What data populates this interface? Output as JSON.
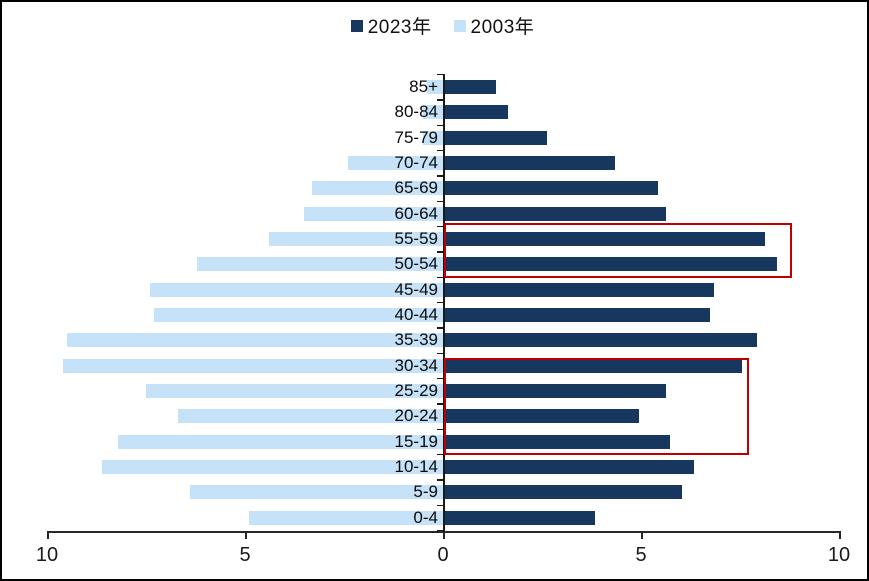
{
  "chart_data": {
    "type": "bar",
    "subtype": "population-pyramid-horizontal",
    "title": "",
    "categories": [
      "85+",
      "80-84",
      "75-79",
      "70-74",
      "65-69",
      "60-64",
      "55-59",
      "50-54",
      "45-49",
      "40-44",
      "35-39",
      "30-34",
      "25-29",
      "20-24",
      "15-19",
      "10-14",
      "5-9",
      "0-4"
    ],
    "series": [
      {
        "name": "2023年",
        "side": "right",
        "color": "#17375E",
        "values": [
          1.3,
          1.6,
          2.6,
          4.3,
          5.4,
          5.6,
          8.1,
          8.4,
          6.8,
          6.7,
          7.9,
          7.5,
          5.6,
          4.9,
          5.7,
          6.3,
          6.0,
          3.8
        ]
      },
      {
        "name": "2003年",
        "side": "left",
        "color": "#C6E2F8",
        "values": [
          0.4,
          0.5,
          0.5,
          2.4,
          3.3,
          3.5,
          4.4,
          6.2,
          7.4,
          7.3,
          9.5,
          9.6,
          7.5,
          6.7,
          8.2,
          8.6,
          6.4,
          4.9
        ]
      }
    ],
    "x_axis": {
      "ticks": [
        {
          "label": "10",
          "value": -10
        },
        {
          "label": "5",
          "value": -5
        },
        {
          "label": "0",
          "value": 0
        },
        {
          "label": "5",
          "value": 5
        },
        {
          "label": "10",
          "value": 10
        }
      ],
      "range_abs": 10,
      "grid": false
    },
    "legend_position": "top-center",
    "annotations": [
      {
        "type": "rect",
        "color": "#C00000",
        "start_category": "55-59",
        "end_category": "50-54",
        "x_value": 8.8
      },
      {
        "type": "rect",
        "color": "#C00000",
        "start_category": "30-34",
        "end_category": "15-19",
        "x_value": 7.7
      }
    ]
  }
}
